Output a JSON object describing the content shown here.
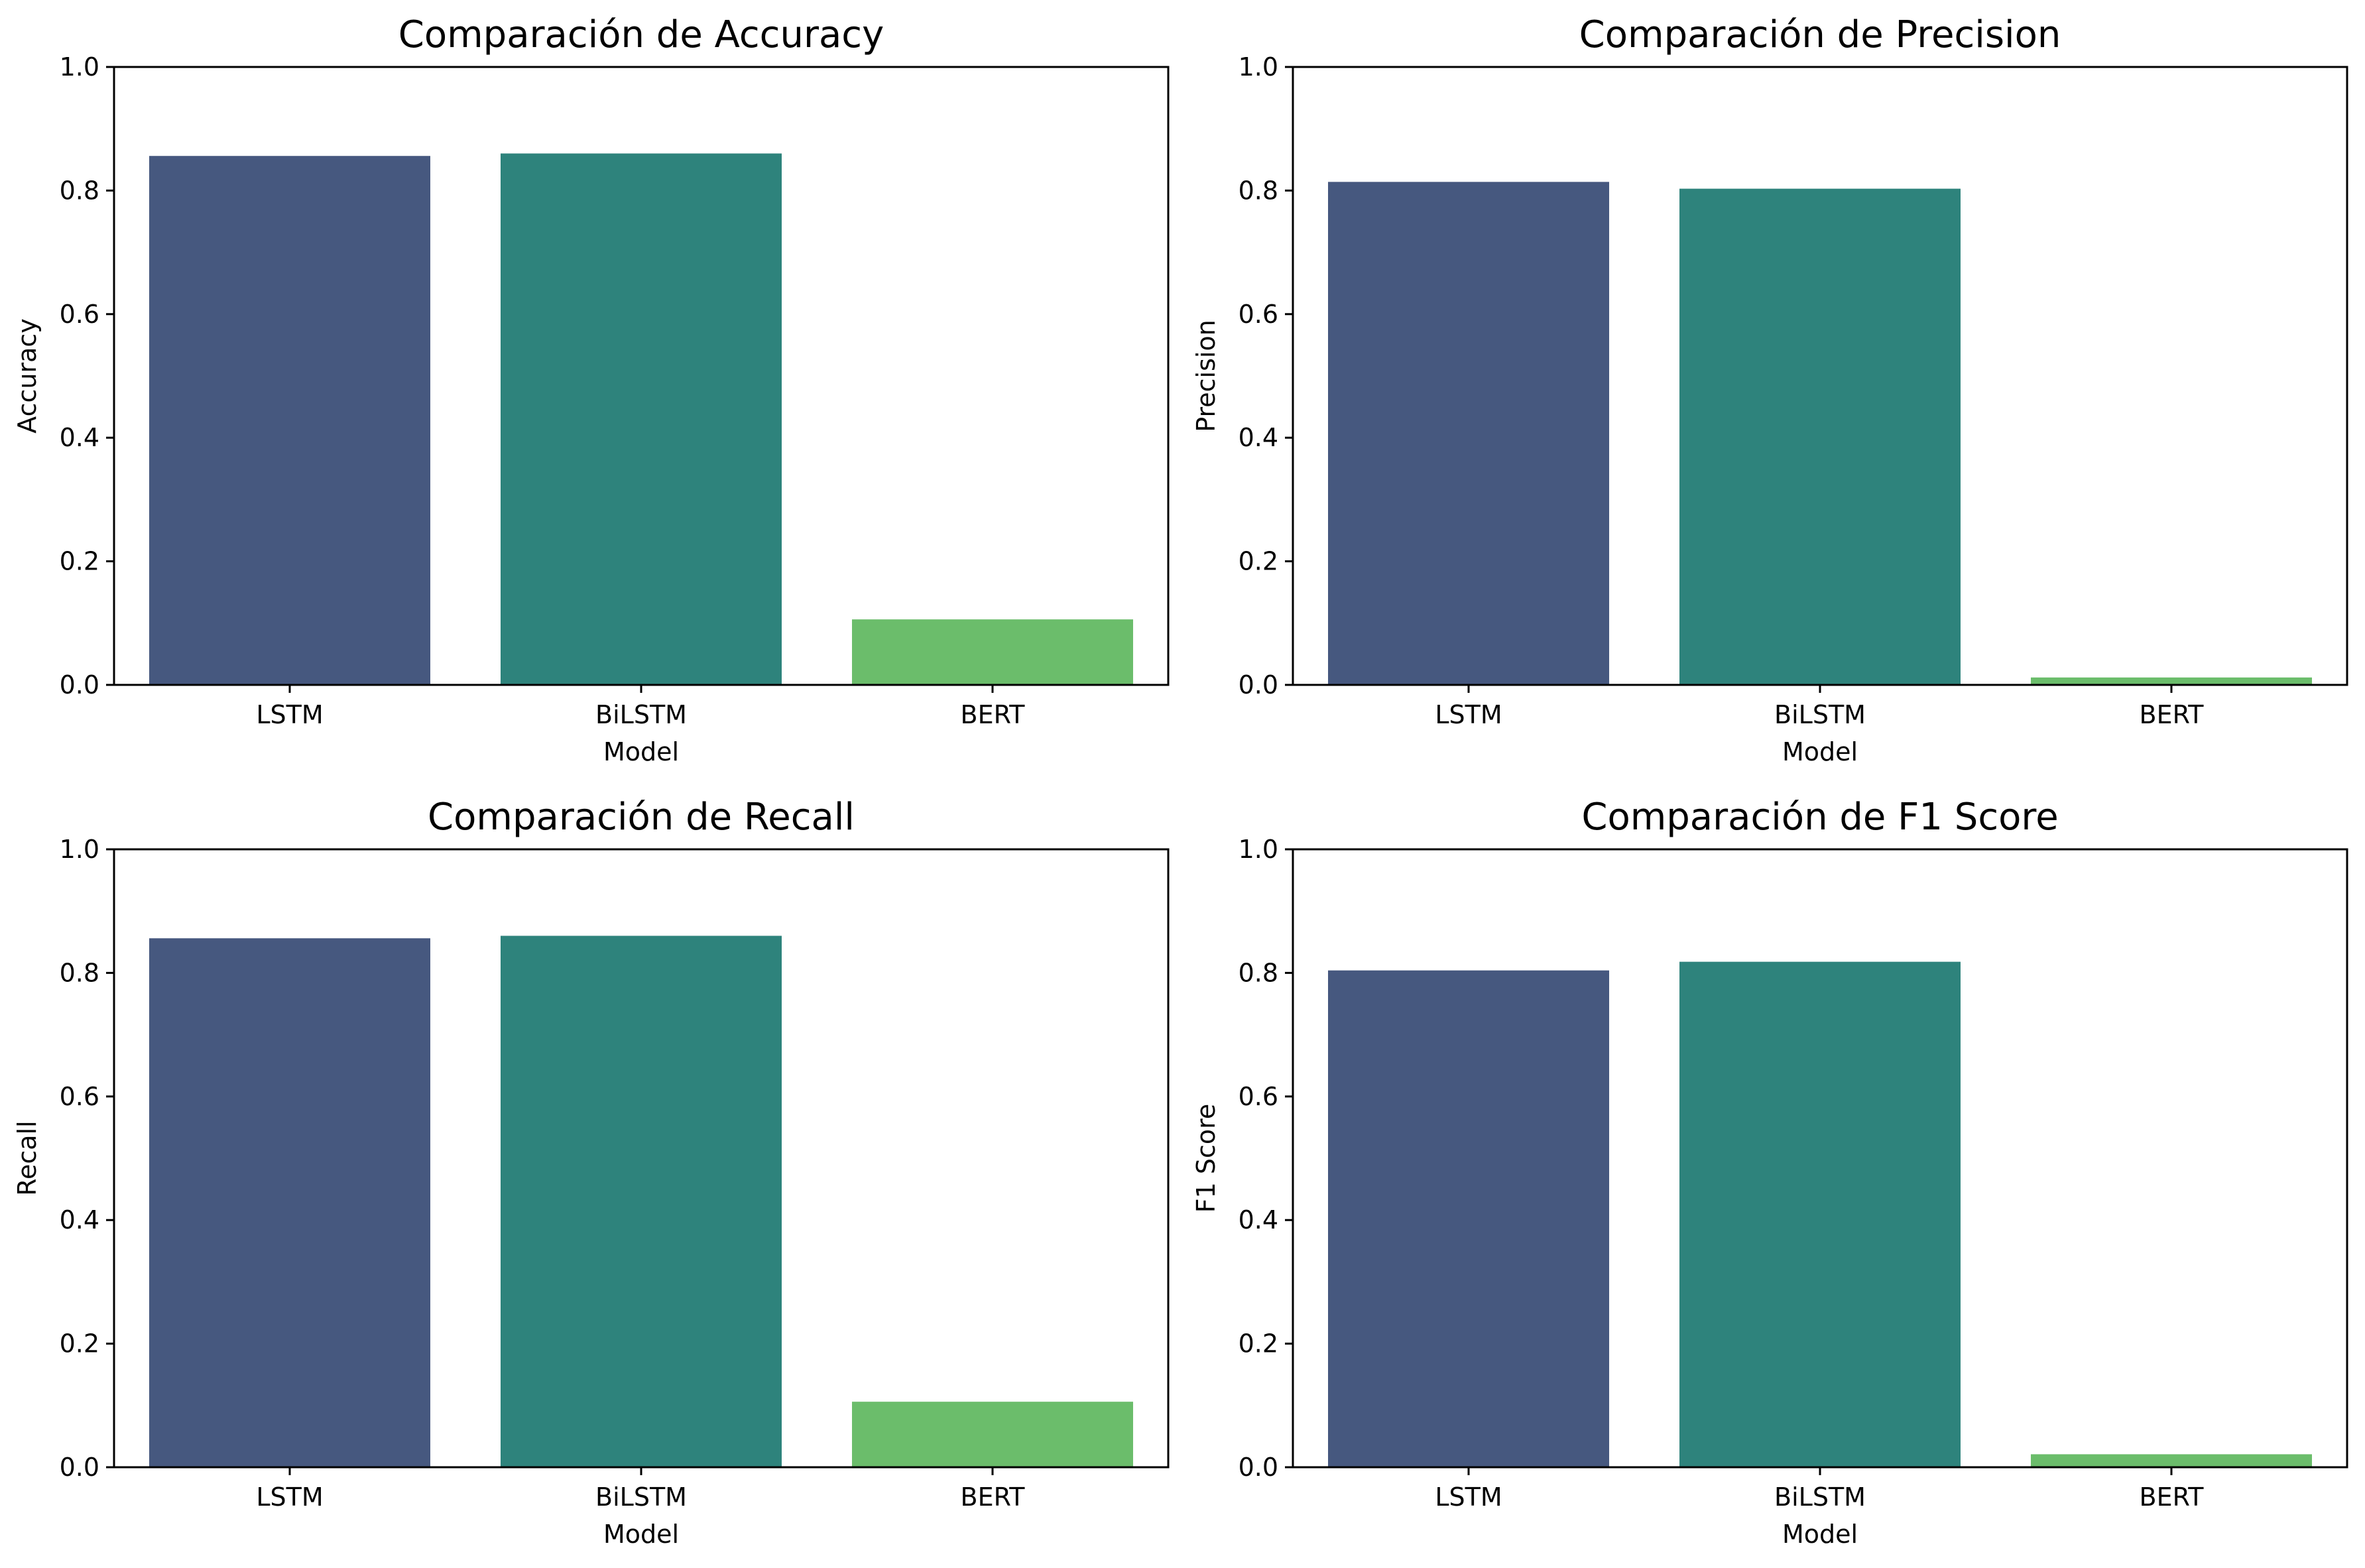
{
  "chart_data": [
    {
      "type": "bar",
      "title": "Comparación de Accuracy",
      "xlabel": "Model",
      "ylabel": "Accuracy",
      "categories": [
        "LSTM",
        "BiLSTM",
        "BERT"
      ],
      "values": [
        0.856,
        0.86,
        0.106
      ],
      "colors": [
        "#46587f",
        "#2e837c",
        "#6bbd6b"
      ],
      "ylim": [
        0,
        1.0
      ],
      "yticks": [
        "0.0",
        "0.2",
        "0.4",
        "0.6",
        "0.8",
        "1.0"
      ],
      "grid": false
    },
    {
      "type": "bar",
      "title": "Comparación de Precision",
      "xlabel": "Model",
      "ylabel": "Precision",
      "categories": [
        "LSTM",
        "BiLSTM",
        "BERT"
      ],
      "values": [
        0.814,
        0.803,
        0.012
      ],
      "colors": [
        "#46587f",
        "#2e837c",
        "#6bbd6b"
      ],
      "ylim": [
        0,
        1.0
      ],
      "yticks": [
        "0.0",
        "0.2",
        "0.4",
        "0.6",
        "0.8",
        "1.0"
      ],
      "grid": false
    },
    {
      "type": "bar",
      "title": "Comparación de Recall",
      "xlabel": "Model",
      "ylabel": "Recall",
      "categories": [
        "LSTM",
        "BiLSTM",
        "BERT"
      ],
      "values": [
        0.856,
        0.86,
        0.106
      ],
      "colors": [
        "#46587f",
        "#2e837c",
        "#6bbd6b"
      ],
      "ylim": [
        0,
        1.0
      ],
      "yticks": [
        "0.0",
        "0.2",
        "0.4",
        "0.6",
        "0.8",
        "1.0"
      ],
      "grid": false
    },
    {
      "type": "bar",
      "title": "Comparación de F1 Score",
      "xlabel": "Model",
      "ylabel": "F1 Score",
      "categories": [
        "LSTM",
        "BiLSTM",
        "BERT"
      ],
      "values": [
        0.804,
        0.818,
        0.021
      ],
      "colors": [
        "#46587f",
        "#2e837c",
        "#6bbd6b"
      ],
      "ylim": [
        0,
        1.0
      ],
      "yticks": [
        "0.0",
        "0.2",
        "0.4",
        "0.6",
        "0.8",
        "1.0"
      ],
      "grid": false
    }
  ]
}
